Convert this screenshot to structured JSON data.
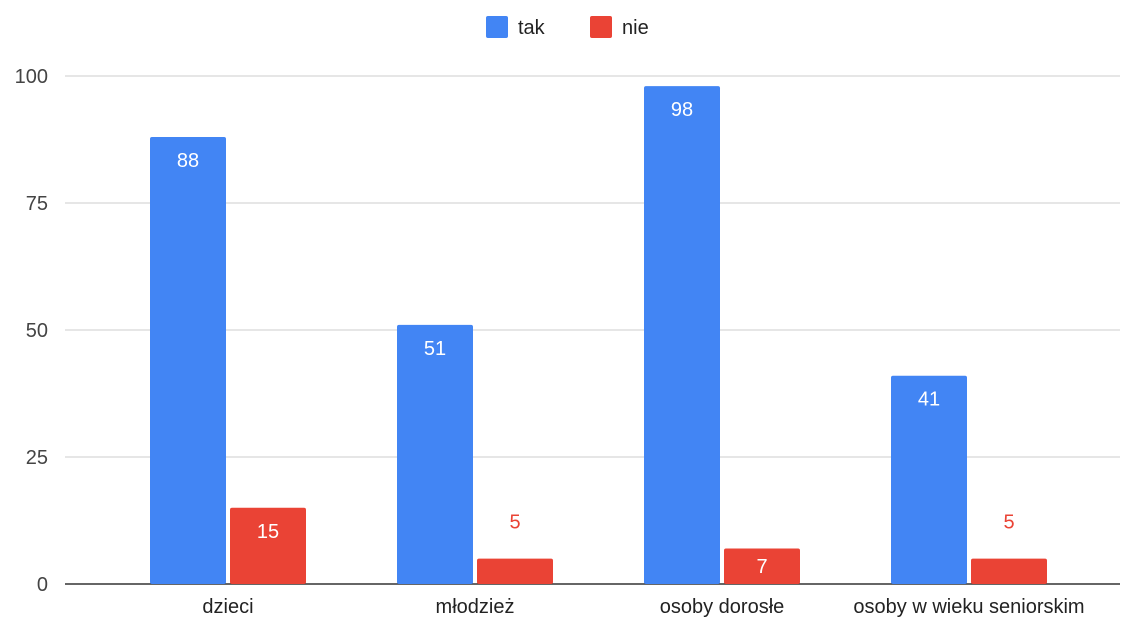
{
  "chart_data": {
    "type": "bar",
    "title": "",
    "xlabel": "",
    "ylabel": "",
    "categories": [
      "dzieci",
      "młodzież",
      "osoby dorosłe",
      "osoby w wieku seniorskim"
    ],
    "series": [
      {
        "name": "tak",
        "values": [
          88,
          51,
          98,
          41
        ],
        "color": "#4285f4"
      },
      {
        "name": "nie",
        "values": [
          15,
          5,
          7,
          5
        ],
        "color": "#ea4335"
      }
    ],
    "ylim": [
      0,
      100
    ],
    "yticks": [
      0,
      25,
      50,
      75,
      100
    ],
    "grid": true,
    "legend_position": "top",
    "data_labels": true
  }
}
